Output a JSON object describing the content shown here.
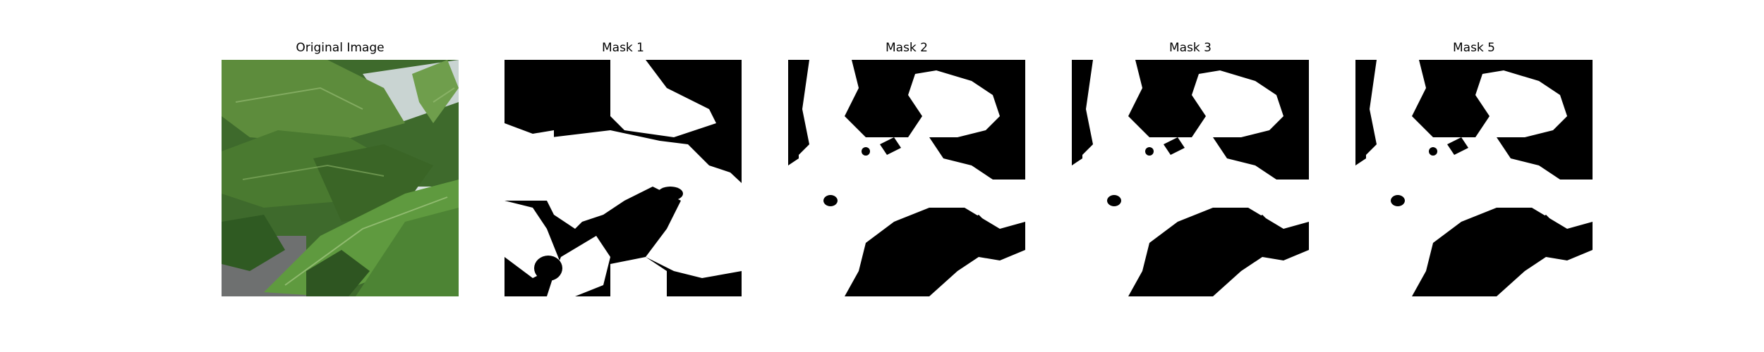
{
  "figure": {
    "panels": [
      {
        "title": "Original Image",
        "content": "leaf-photo"
      },
      {
        "title": "Mask 1",
        "content": "binary-mask"
      },
      {
        "title": "Mask 2",
        "content": "binary-mask"
      },
      {
        "title": "Mask 3",
        "content": "binary-mask"
      },
      {
        "title": "Mask 5",
        "content": "binary-mask"
      }
    ]
  },
  "colors": {
    "mask_foreground": "#ffffff",
    "mask_background": "#000000",
    "leaf_dark": "#2f5a22",
    "leaf_mid": "#4f7f35",
    "leaf_light": "#7ea85a",
    "background_grey": "#6e7070",
    "background_light": "#d8e2e0"
  }
}
